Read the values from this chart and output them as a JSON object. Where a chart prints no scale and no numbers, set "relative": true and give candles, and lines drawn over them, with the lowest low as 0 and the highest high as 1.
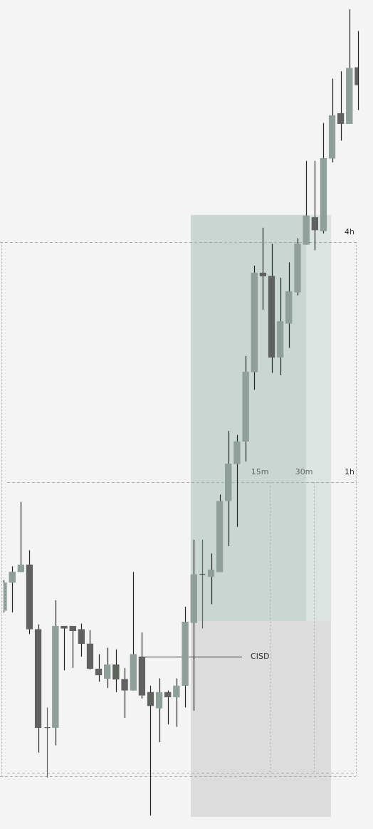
{
  "chart_data": {
    "type": "candlestick",
    "relative": true,
    "categories": [
      null,
      null,
      null,
      null,
      null,
      null,
      null,
      null,
      null,
      null,
      null,
      null,
      null,
      null,
      null,
      null,
      null,
      null,
      null,
      null,
      null,
      null,
      null,
      null,
      null,
      null,
      null,
      null,
      null,
      null,
      null,
      null,
      null,
      null,
      null,
      null,
      null,
      null,
      null,
      null,
      null,
      null
    ],
    "ohlc": [
      [
        0.254,
        0.292,
        0.252,
        0.289
      ],
      [
        0.289,
        0.309,
        0.252,
        0.302
      ],
      [
        0.302,
        0.389,
        0.302,
        0.311
      ],
      [
        0.311,
        0.329,
        0.225,
        0.231
      ],
      [
        0.231,
        0.237,
        0.078,
        0.109
      ],
      [
        0.109,
        0.134,
        0.047,
        0.109
      ],
      [
        0.109,
        0.267,
        0.087,
        0.235
      ],
      [
        0.235,
        0.235,
        0.18,
        0.232
      ],
      [
        0.235,
        0.235,
        0.183,
        0.229
      ],
      [
        0.231,
        0.238,
        0.197,
        0.213
      ],
      [
        0.213,
        0.23,
        0.181,
        0.182
      ],
      [
        0.182,
        0.2,
        0.166,
        0.174
      ],
      [
        0.17,
        0.208,
        0.158,
        0.187
      ],
      [
        0.187,
        0.206,
        0.153,
        0.169
      ],
      [
        0.169,
        0.183,
        0.121,
        0.155
      ],
      [
        0.155,
        0.302,
        0.155,
        0.2
      ],
      [
        0.197,
        0.227,
        0.145,
        0.149
      ],
      [
        0.153,
        0.161,
        0,
        0.136
      ],
      [
        0.133,
        0.17,
        0.091,
        0.153
      ],
      [
        0.153,
        0.155,
        0.113,
        0.147
      ],
      [
        0.147,
        0.17,
        0.11,
        0.161
      ],
      [
        0.161,
        0.259,
        0.134,
        0.24
      ],
      [
        0.239,
        0.342,
        0.13,
        0.299
      ],
      [
        0.299,
        0.342,
        0.232,
        0.299
      ],
      [
        0.296,
        0.325,
        0.262,
        0.305
      ],
      [
        0.302,
        0.398,
        0.302,
        0.39
      ],
      [
        0.39,
        0.477,
        0.334,
        0.436
      ],
      [
        0.436,
        0.472,
        0.358,
        0.464
      ],
      [
        0.464,
        0.57,
        0.439,
        0.55
      ],
      [
        0.55,
        0.682,
        0.528,
        0.673
      ],
      [
        0.673,
        0.729,
        0.627,
        0.669
      ],
      [
        0.669,
        0.709,
        0.549,
        0.568
      ],
      [
        0.568,
        0.667,
        0.546,
        0.613
      ],
      [
        0.61,
        0.686,
        0.58,
        0.65
      ],
      [
        0.649,
        0.716,
        0.645,
        0.709
      ],
      [
        0.708,
        0.812,
        0.708,
        0.744
      ],
      [
        0.742,
        0.812,
        0.701,
        0.726
      ],
      [
        0.725,
        0.859,
        0.722,
        0.815
      ],
      [
        0.815,
        0.914,
        0.81,
        0.868
      ],
      [
        0.871,
        0.923,
        0.837,
        0.858
      ],
      [
        0.858,
        1,
        0.858,
        0.927
      ],
      [
        0.928,
        0.973,
        0.875,
        0.906
      ]
    ],
    "colors": [
      "#8fa09a",
      "#8fa09a",
      "#8fa09a",
      "#5f625f",
      "#5f625f",
      "#5f625f",
      "#8fa09a",
      "#5f625f",
      "#5f625f",
      "#5f625f",
      "#5f625f",
      "#5f625f",
      "#8fa09a",
      "#5f625f",
      "#5f625f",
      "#8fa09a",
      "#5f625f",
      "#5f625f",
      "#8fa09a",
      "#5f625f",
      "#8fa09a",
      "#8fa09a",
      "#8fa09a",
      "#5f625f",
      "#8fa09a",
      "#8fa09a",
      "#8fa09a",
      "#8fa09a",
      "#8fa09a",
      "#8fa09a",
      "#5f625f",
      "#5f625f",
      "#8fa09a",
      "#8fa09a",
      "#8fa09a",
      "#8fa09a",
      "#5f625f",
      "#8fa09a",
      "#8fa09a",
      "#5f625f",
      "#8fa09a",
      "#5f625f"
    ],
    "bands": [
      {
        "axis": "y",
        "from": 0.241,
        "to": 0.745,
        "color": "#c9d6d2"
      },
      {
        "axis": "y",
        "from": 0.241,
        "to": 0.745,
        "color": "#dce4e2"
      },
      {
        "axis": "y",
        "from": 0,
        "to": 0.241,
        "color": "#dcdcdc"
      }
    ],
    "ref_lines": [
      {
        "axis": "y",
        "value": 0.711,
        "label": "4h",
        "line_style": "dashed"
      },
      {
        "axis": "y",
        "value": 0.413,
        "label": "1h",
        "line_style": "dashed"
      },
      {
        "axis": "y",
        "value": 0.053,
        "label": null,
        "line_style": "dashed"
      },
      {
        "axis": "y",
        "value": 0.049,
        "label": null,
        "line_style": "dashed"
      },
      {
        "axis": "y",
        "value": 0.197,
        "label": "CISD",
        "line_style": "solid",
        "color": "#333333"
      }
    ],
    "annotations": [
      "15m",
      "30m"
    ],
    "grid": false,
    "legend": false,
    "tick_labels": false
  }
}
